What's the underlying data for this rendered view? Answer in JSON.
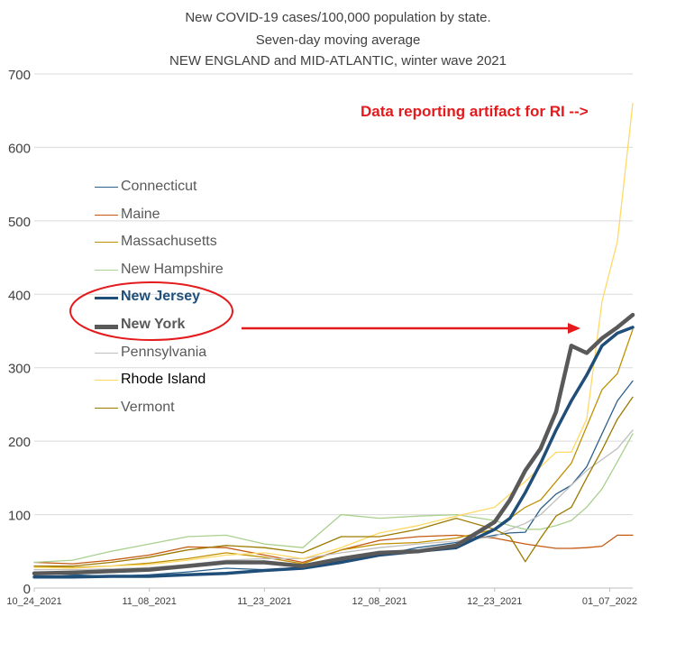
{
  "chart_data": {
    "type": "line",
    "title": "New COVID-19 cases/100,000 population by state.",
    "subtitle": "Seven-day moving average",
    "subtitle2": "NEW ENGLAND and MID-ATLANTIC, winter wave 2021",
    "xlabel": "",
    "ylabel": "",
    "ylim": [
      0,
      700
    ],
    "yticks": [
      0,
      100,
      200,
      300,
      400,
      500,
      600,
      700
    ],
    "xticks": [
      "10_24_2021",
      "11_08_2021",
      "11_23_2021",
      "12_08_2021",
      "12_23_2021",
      "01_07_2022"
    ],
    "grid": true,
    "legend_position": "left",
    "x": [
      "10_24_2021",
      "10_29_2021",
      "11_03_2021",
      "11_08_2021",
      "11_13_2021",
      "11_18_2021",
      "11_23_2021",
      "11_28_2021",
      "12_03_2021",
      "12_08_2021",
      "12_13_2021",
      "12_18_2021",
      "12_23_2021",
      "12_25_2021",
      "12_27_2021",
      "12_29_2021",
      "12_31_2021",
      "01_02_2022",
      "01_04_2022",
      "01_06_2022",
      "01_08_2022",
      "01_10_2022"
    ],
    "series": [
      {
        "name": "Connecticut",
        "values": [
          20,
          18,
          16,
          18,
          22,
          27,
          25,
          26,
          38,
          45,
          55,
          62,
          72,
          75,
          76,
          108,
          128,
          140,
          165,
          210,
          255,
          282
        ]
      },
      {
        "name": "Maine",
        "values": [
          35,
          33,
          38,
          45,
          56,
          55,
          45,
          35,
          52,
          65,
          70,
          72,
          68,
          64,
          60,
          57,
          54,
          54,
          55,
          57,
          72,
          72
        ]
      },
      {
        "name": "Massachusetts",
        "values": [
          30,
          28,
          30,
          34,
          40,
          48,
          42,
          33,
          52,
          60,
          62,
          68,
          80,
          95,
          110,
          120,
          145,
          170,
          220,
          270,
          292,
          352
        ]
      },
      {
        "name": "New Hampshire",
        "values": [
          35,
          38,
          50,
          60,
          70,
          72,
          60,
          55,
          100,
          95,
          98,
          100,
          92,
          85,
          80,
          80,
          85,
          92,
          110,
          135,
          172,
          210
        ]
      },
      {
        "name": "New Jersey",
        "values": [
          15,
          15,
          16,
          16,
          18,
          20,
          24,
          27,
          35,
          45,
          50,
          55,
          80,
          95,
          130,
          170,
          215,
          255,
          290,
          330,
          347,
          355
        ]
      },
      {
        "name": "New York",
        "values": [
          20,
          21,
          23,
          25,
          30,
          35,
          35,
          30,
          40,
          48,
          50,
          58,
          90,
          120,
          160,
          190,
          240,
          330,
          320,
          340,
          355,
          372
        ]
      },
      {
        "name": "Pennsylvania",
        "values": [
          25,
          25,
          26,
          28,
          32,
          38,
          40,
          40,
          48,
          55,
          60,
          64,
          70,
          80,
          88,
          100,
          120,
          140,
          160,
          175,
          190,
          215
        ]
      },
      {
        "name": "Rhode Island",
        "values": [
          28,
          27,
          30,
          32,
          38,
          45,
          48,
          40,
          55,
          75,
          85,
          98,
          110,
          128,
          145,
          165,
          185,
          185,
          230,
          390,
          472,
          660
        ]
      },
      {
        "name": "Vermont",
        "values": [
          30,
          30,
          35,
          42,
          52,
          58,
          55,
          48,
          70,
          70,
          80,
          95,
          80,
          70,
          36,
          68,
          98,
          110,
          150,
          188,
          230,
          260
        ]
      }
    ],
    "colors": {
      "Connecticut": "#2c5f8a",
      "Maine": "#c55a11",
      "Massachusetts": "#bf9000",
      "New Hampshire": "#a9d08e",
      "New Jersey": "#1f4e79",
      "New York": "#595959",
      "Pennsylvania": "#bfbfbf",
      "Rhode Island": "#ffd966",
      "Vermont": "#9c7a00"
    },
    "highlighted": [
      "New Jersey",
      "New York"
    ],
    "annotation": "Data reporting artifact for RI -->",
    "annotation_color": "#e41a1c"
  }
}
